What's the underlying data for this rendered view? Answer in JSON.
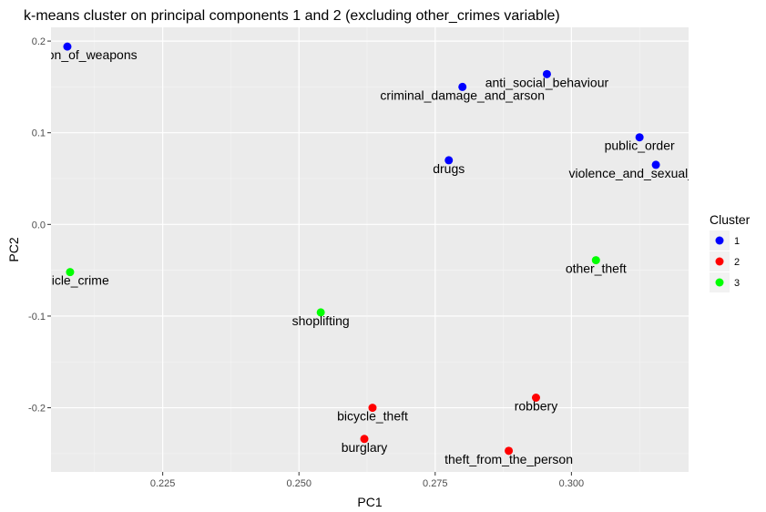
{
  "chart_data": {
    "type": "scatter",
    "title": "k-means cluster on principal components 1 and 2 (excluding other_crimes variable)",
    "xlabel": "PC1",
    "ylabel": "PC2",
    "xlim": [
      0.2045,
      0.3215
    ],
    "ylim": [
      -0.27,
      0.215
    ],
    "x_ticks": [
      0.225,
      0.25,
      0.275,
      0.3
    ],
    "x_tick_labels": [
      "0.225",
      "0.250",
      "0.275",
      "0.300"
    ],
    "y_ticks": [
      0.2,
      0.1,
      0.0,
      -0.1,
      -0.2
    ],
    "y_tick_labels": [
      "0.2",
      "0.1",
      "0.0",
      "-0.1",
      "-0.2"
    ],
    "grid": true,
    "legend": {
      "title": "Cluster",
      "position": "right",
      "items": [
        {
          "label": "1",
          "color": "#0000ff"
        },
        {
          "label": "2",
          "color": "#ff0000"
        },
        {
          "label": "3",
          "color": "#00ff00"
        }
      ]
    },
    "points": [
      {
        "label": "possession_of_weapons",
        "x": 0.2075,
        "y": 0.194,
        "cluster": "1"
      },
      {
        "label": "anti_social_behaviour",
        "x": 0.2955,
        "y": 0.164,
        "cluster": "1"
      },
      {
        "label": "criminal_damage_and_arson",
        "x": 0.28,
        "y": 0.15,
        "cluster": "1"
      },
      {
        "label": "public_order",
        "x": 0.3125,
        "y": 0.095,
        "cluster": "1"
      },
      {
        "label": "drugs",
        "x": 0.2775,
        "y": 0.07,
        "cluster": "1"
      },
      {
        "label": "violence_and_sexual_offences",
        "x": 0.3155,
        "y": 0.065,
        "cluster": "1"
      },
      {
        "label": "vehicle_crime",
        "x": 0.208,
        "y": -0.052,
        "cluster": "3"
      },
      {
        "label": "other_theft",
        "x": 0.3045,
        "y": -0.039,
        "cluster": "3"
      },
      {
        "label": "shoplifting",
        "x": 0.254,
        "y": -0.096,
        "cluster": "3"
      },
      {
        "label": "bicycle_theft",
        "x": 0.2635,
        "y": -0.2,
        "cluster": "2"
      },
      {
        "label": "robbery",
        "x": 0.2935,
        "y": -0.189,
        "cluster": "2"
      },
      {
        "label": "burglary",
        "x": 0.262,
        "y": -0.234,
        "cluster": "2"
      },
      {
        "label": "theft_from_the_person",
        "x": 0.2885,
        "y": -0.247,
        "cluster": "2"
      }
    ]
  }
}
